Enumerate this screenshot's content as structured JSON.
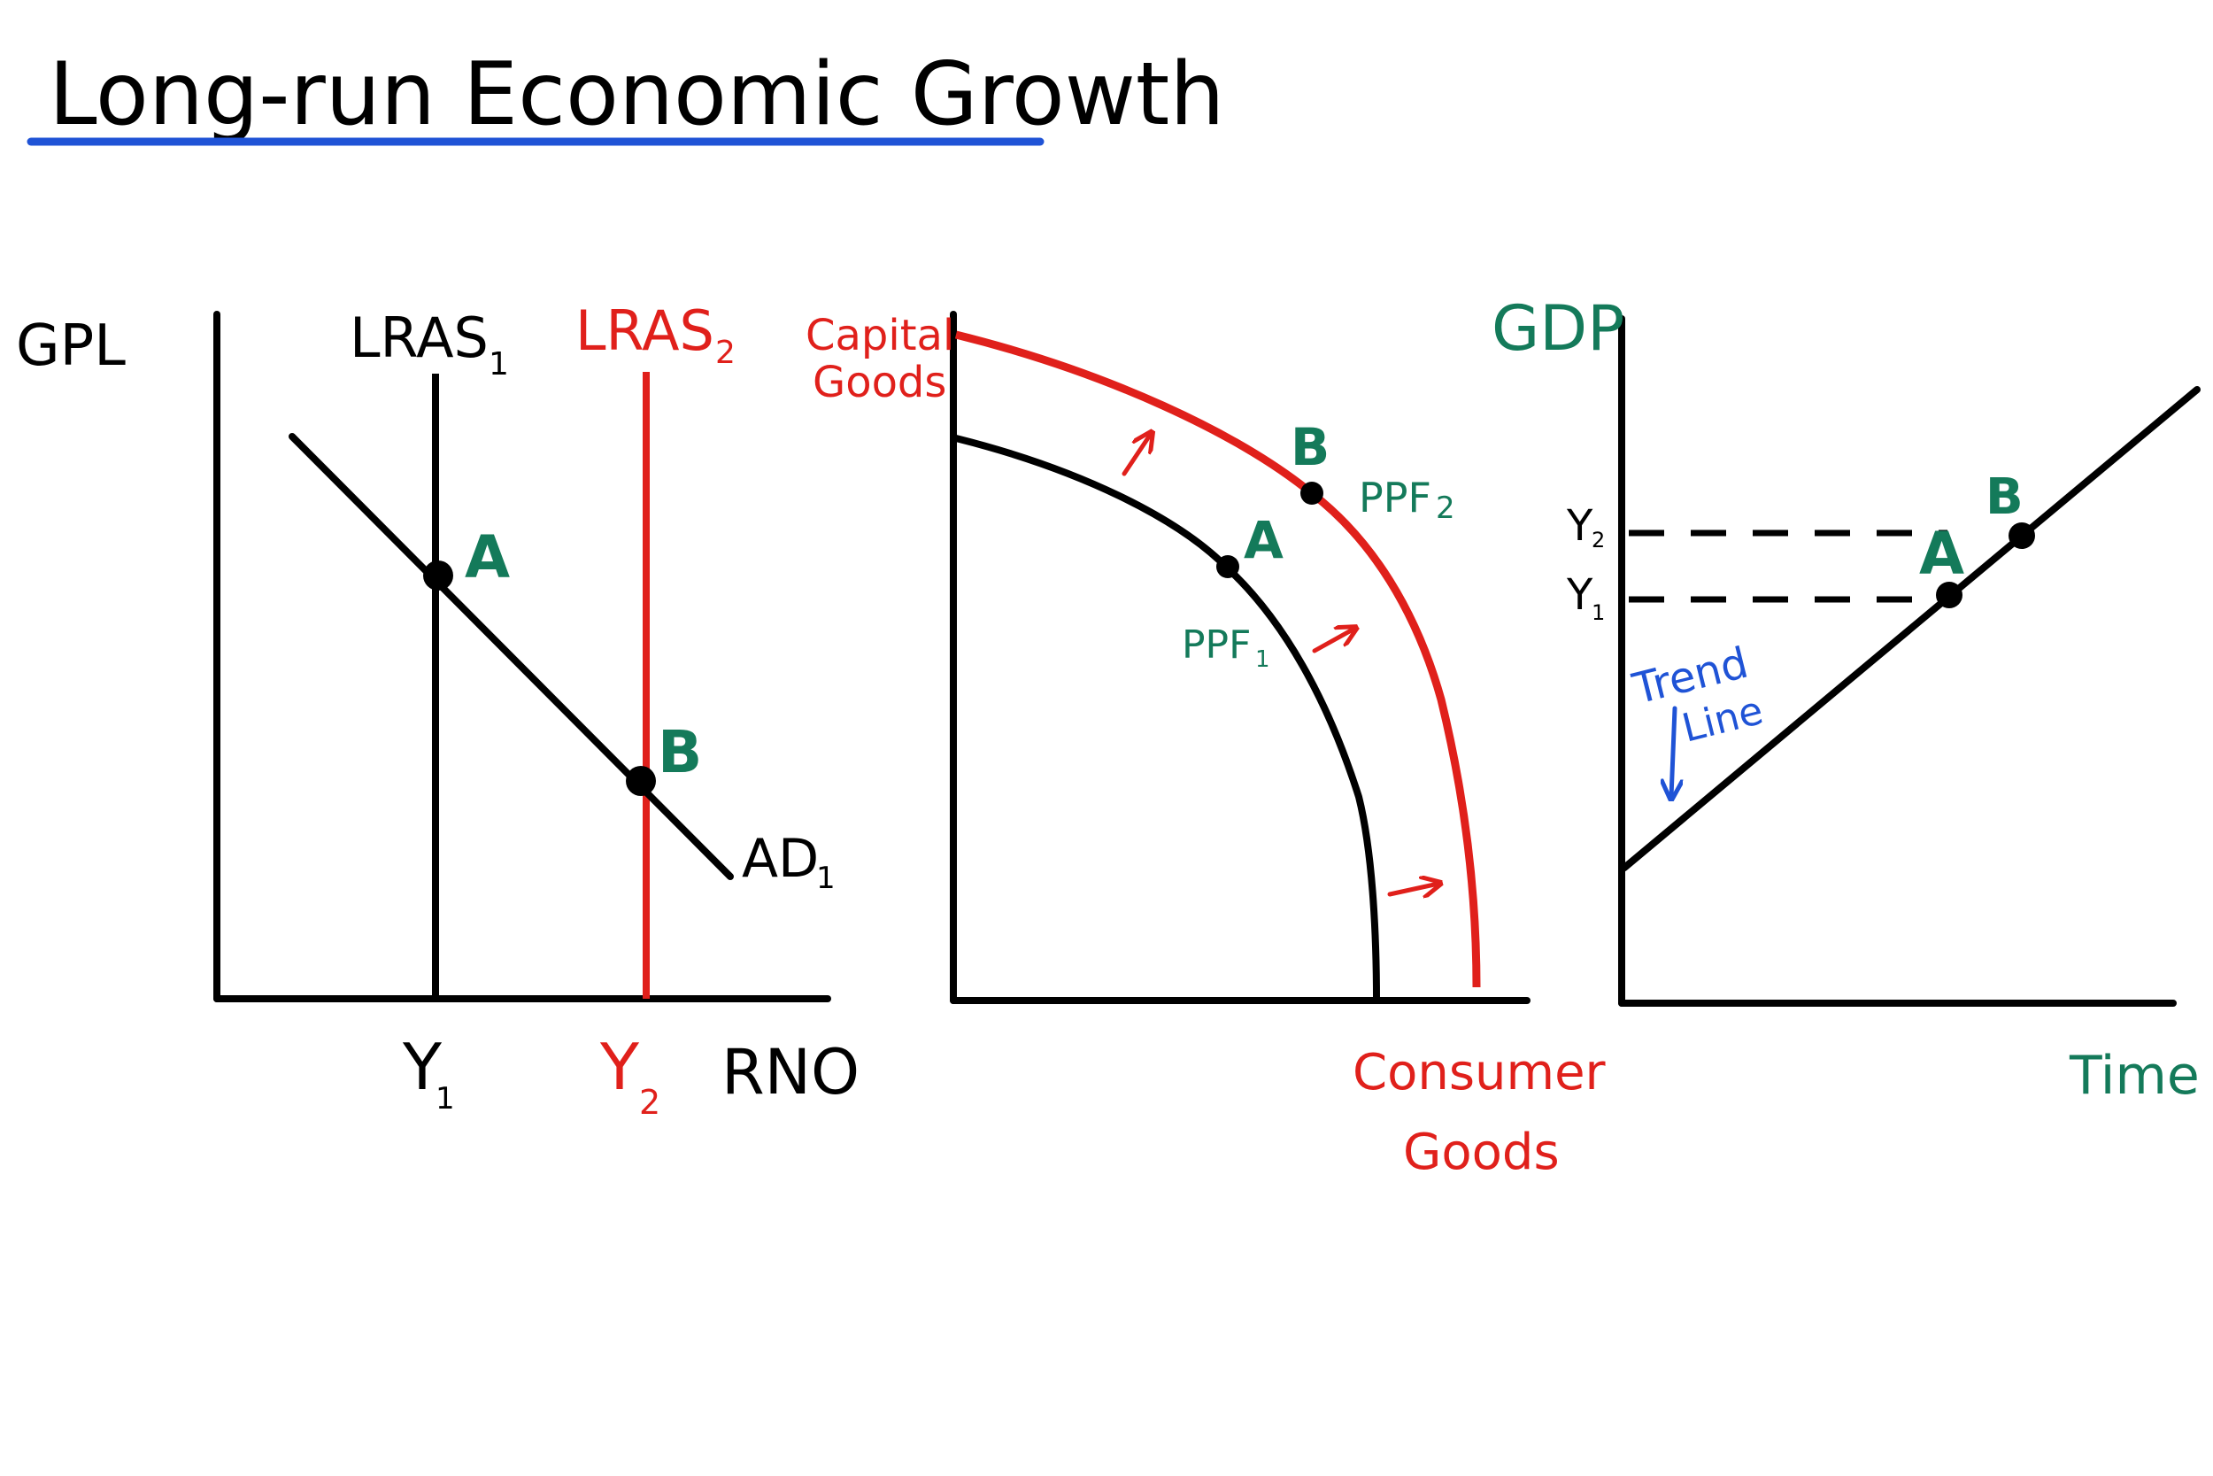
{
  "title": "Long-run Economic Growth",
  "colors": {
    "ink": "#000000",
    "red": "#e0201b",
    "green": "#147a5a",
    "blue": "#1f53d6",
    "underline": "#1f53d6"
  },
  "panel1": {
    "y_axis_label": "GPL",
    "x_axis_label": "RNO",
    "lras1_label": "LRAS",
    "lras1_sub": "1",
    "lras2_label": "LRAS",
    "lras2_sub": "2",
    "ad_label": "AD",
    "ad_sub": "1",
    "y1_label": "Y",
    "y1_sub": "1",
    "y2_label": "Y",
    "y2_sub": "2",
    "point_a": "A",
    "point_b": "B"
  },
  "panel2": {
    "y_axis_label_line1": "Capital",
    "y_axis_label_line2": "Goods",
    "x_axis_label_line1": "Consumer",
    "x_axis_label_line2": "Goods",
    "ppf1_label": "PPF",
    "ppf1_sub": "1",
    "ppf2_label": "PPF",
    "ppf2_sub": "2",
    "point_a": "A",
    "point_b": "B"
  },
  "panel3": {
    "y_axis_label": "GDP",
    "x_axis_label": "Time",
    "y1_label": "Y",
    "y1_sub": "1",
    "y2_label": "Y",
    "y2_sub": "2",
    "trend_line1": "Trend",
    "trend_line2": "Line",
    "point_a": "A",
    "point_b": "B"
  }
}
